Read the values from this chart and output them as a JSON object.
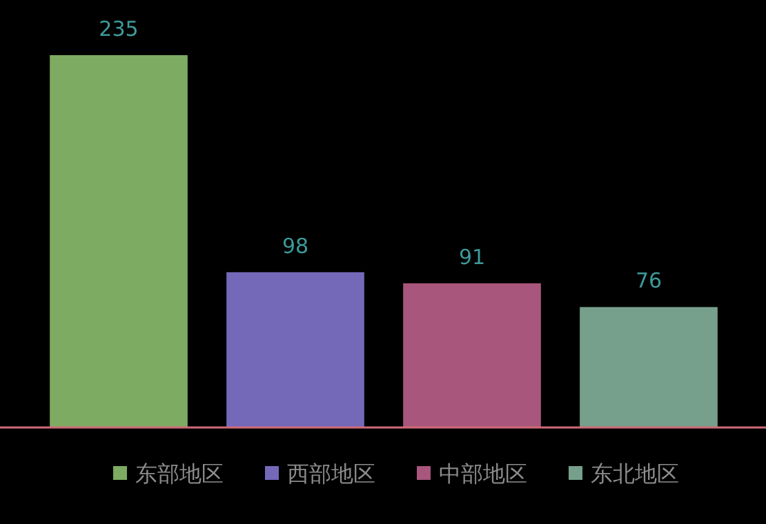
{
  "chart_data": {
    "type": "bar",
    "stacked": true,
    "categories": [
      null,
      null,
      null,
      null
    ],
    "series": [
      {
        "name": "东部地区",
        "color": "#7dab62",
        "values": [
          235,
          null,
          null,
          null
        ]
      },
      {
        "name": "西部地区",
        "color": "#7469b9",
        "values": [
          null,
          98,
          null,
          null
        ]
      },
      {
        "name": "中部地区",
        "color": "#a8567b",
        "values": [
          null,
          null,
          91,
          null
        ]
      },
      {
        "name": "东北地区",
        "color": "#77a08c",
        "values": [
          null,
          null,
          null,
          76
        ]
      }
    ],
    "data_labels": true,
    "legend": "bottom",
    "tick_labels": false
  }
}
